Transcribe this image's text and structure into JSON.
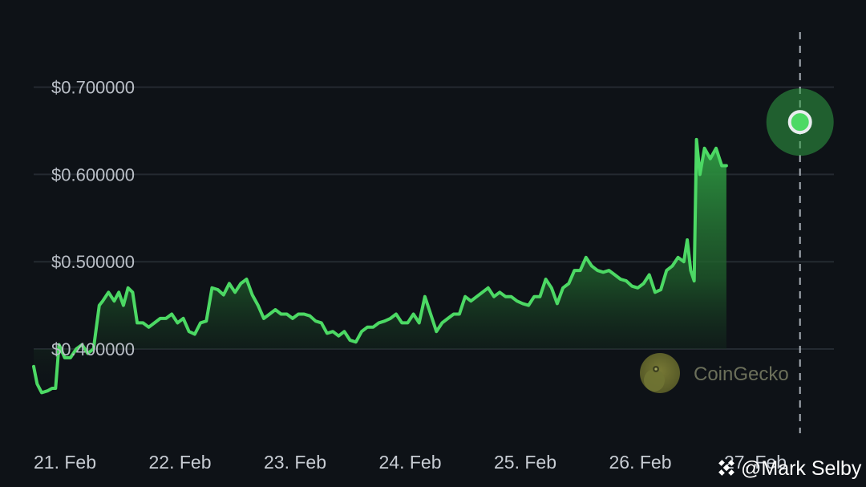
{
  "chart_data": {
    "type": "area",
    "colors": {
      "line": "#4cd964",
      "fill_top": "#2f9e44",
      "grid": "#242a31",
      "background": "#0e1217",
      "marker": "#e9ecef"
    },
    "ylim": [
      0.33,
      0.75
    ],
    "y_ticks": [
      {
        "value": 0.4,
        "label": "$0.400000"
      },
      {
        "value": 0.5,
        "label": "$0.500000"
      },
      {
        "value": 0.6,
        "label": "$0.600000"
      },
      {
        "value": 0.7,
        "label": "$0.700000"
      }
    ],
    "x_ticks": [
      {
        "day": 21,
        "label": "21. Feb"
      },
      {
        "day": 22,
        "label": "22. Feb"
      },
      {
        "day": 23,
        "label": "23. Feb"
      },
      {
        "day": 24,
        "label": "24. Feb"
      },
      {
        "day": 25,
        "label": "25. Feb"
      },
      {
        "day": 26,
        "label": "26. Feb"
      },
      {
        "day": 27,
        "label": "27. Feb"
      }
    ],
    "x_range_days": [
      21.0,
      28.0
    ],
    "grid": true,
    "highlight": {
      "day": 27.66,
      "value": 0.66
    },
    "series": [
      {
        "points": [
          [
            21.0,
            0.38
          ],
          [
            21.03,
            0.36
          ],
          [
            21.07,
            0.35
          ],
          [
            21.12,
            0.352
          ],
          [
            21.16,
            0.355
          ],
          [
            21.19,
            0.355
          ],
          [
            21.22,
            0.405
          ],
          [
            21.27,
            0.39
          ],
          [
            21.32,
            0.39
          ],
          [
            21.37,
            0.4
          ],
          [
            21.42,
            0.405
          ],
          [
            21.47,
            0.395
          ],
          [
            21.52,
            0.4
          ],
          [
            21.57,
            0.45
          ],
          [
            21.6,
            0.455
          ],
          [
            21.65,
            0.465
          ],
          [
            21.7,
            0.455
          ],
          [
            21.74,
            0.465
          ],
          [
            21.78,
            0.45
          ],
          [
            21.82,
            0.47
          ],
          [
            21.86,
            0.465
          ],
          [
            21.9,
            0.43
          ],
          [
            21.95,
            0.43
          ],
          [
            22.0,
            0.425
          ],
          [
            22.05,
            0.43
          ],
          [
            22.1,
            0.435
          ],
          [
            22.15,
            0.435
          ],
          [
            22.2,
            0.44
          ],
          [
            22.25,
            0.43
          ],
          [
            22.3,
            0.435
          ],
          [
            22.35,
            0.42
          ],
          [
            22.4,
            0.417
          ],
          [
            22.45,
            0.43
          ],
          [
            22.5,
            0.432
          ],
          [
            22.55,
            0.47
          ],
          [
            22.6,
            0.468
          ],
          [
            22.65,
            0.462
          ],
          [
            22.7,
            0.475
          ],
          [
            22.75,
            0.465
          ],
          [
            22.8,
            0.475
          ],
          [
            22.85,
            0.48
          ],
          [
            22.9,
            0.462
          ],
          [
            22.95,
            0.45
          ],
          [
            23.0,
            0.435
          ],
          [
            23.05,
            0.44
          ],
          [
            23.1,
            0.445
          ],
          [
            23.15,
            0.44
          ],
          [
            23.2,
            0.44
          ],
          [
            23.25,
            0.435
          ],
          [
            23.3,
            0.44
          ],
          [
            23.35,
            0.44
          ],
          [
            23.4,
            0.438
          ],
          [
            23.45,
            0.432
          ],
          [
            23.5,
            0.43
          ],
          [
            23.55,
            0.418
          ],
          [
            23.6,
            0.42
          ],
          [
            23.65,
            0.415
          ],
          [
            23.7,
            0.42
          ],
          [
            23.75,
            0.41
          ],
          [
            23.8,
            0.408
          ],
          [
            23.85,
            0.42
          ],
          [
            23.9,
            0.425
          ],
          [
            23.95,
            0.425
          ],
          [
            24.0,
            0.43
          ],
          [
            24.05,
            0.432
          ],
          [
            24.1,
            0.435
          ],
          [
            24.15,
            0.44
          ],
          [
            24.2,
            0.43
          ],
          [
            24.25,
            0.43
          ],
          [
            24.3,
            0.44
          ],
          [
            24.35,
            0.43
          ],
          [
            24.4,
            0.46
          ],
          [
            24.45,
            0.44
          ],
          [
            24.5,
            0.42
          ],
          [
            24.55,
            0.43
          ],
          [
            24.6,
            0.435
          ],
          [
            24.65,
            0.44
          ],
          [
            24.7,
            0.44
          ],
          [
            24.75,
            0.46
          ],
          [
            24.8,
            0.455
          ],
          [
            24.85,
            0.46
          ],
          [
            24.9,
            0.465
          ],
          [
            24.95,
            0.47
          ],
          [
            25.0,
            0.46
          ],
          [
            25.05,
            0.465
          ],
          [
            25.1,
            0.46
          ],
          [
            25.15,
            0.46
          ],
          [
            25.2,
            0.455
          ],
          [
            25.25,
            0.452
          ],
          [
            25.3,
            0.45
          ],
          [
            25.35,
            0.46
          ],
          [
            25.4,
            0.46
          ],
          [
            25.45,
            0.48
          ],
          [
            25.5,
            0.47
          ],
          [
            25.55,
            0.452
          ],
          [
            25.6,
            0.47
          ],
          [
            25.65,
            0.475
          ],
          [
            25.7,
            0.49
          ],
          [
            25.75,
            0.49
          ],
          [
            25.8,
            0.505
          ],
          [
            25.85,
            0.495
          ],
          [
            25.9,
            0.49
          ],
          [
            25.95,
            0.488
          ],
          [
            26.0,
            0.49
          ],
          [
            26.05,
            0.485
          ],
          [
            26.1,
            0.48
          ],
          [
            26.15,
            0.478
          ],
          [
            26.2,
            0.472
          ],
          [
            26.25,
            0.47
          ],
          [
            26.3,
            0.475
          ],
          [
            26.35,
            0.485
          ],
          [
            26.4,
            0.465
          ],
          [
            26.45,
            0.468
          ],
          [
            26.5,
            0.49
          ],
          [
            26.55,
            0.495
          ],
          [
            26.6,
            0.505
          ],
          [
            26.65,
            0.5
          ],
          [
            26.68,
            0.525
          ],
          [
            26.71,
            0.49
          ],
          [
            26.74,
            0.478
          ],
          [
            26.76,
            0.64
          ],
          [
            26.79,
            0.6
          ],
          [
            26.83,
            0.63
          ],
          [
            26.88,
            0.618
          ],
          [
            26.93,
            0.63
          ],
          [
            26.98,
            0.61
          ],
          [
            27.02,
            0.61
          ]
        ]
      }
    ]
  },
  "watermark": {
    "text": "CoinGecko"
  },
  "credit": {
    "text": "@Mark Selby"
  }
}
